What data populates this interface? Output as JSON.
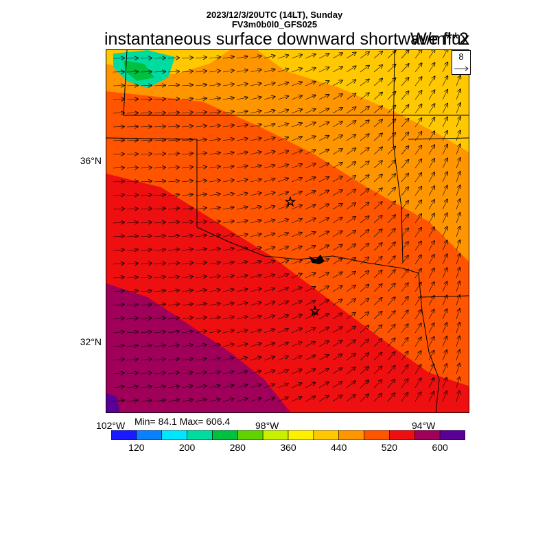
{
  "header": {
    "line1": "2023/12/3/20UTC (14LT), Sunday",
    "line2": "FV3m0b0l0_GFS025",
    "title": "instantaneous surface downward shortwave flux",
    "units": "W/m**2"
  },
  "map": {
    "lat_labels": [
      "36°N",
      "32°N"
    ],
    "lon_labels": [
      "102°W",
      "98°W",
      "94°W"
    ],
    "stats": "Min= 84.1 Max= 606.4",
    "vector_ref": "8",
    "markers": [
      "star-marker",
      "star-marker"
    ]
  },
  "colorbar": {
    "colors": [
      "#1a1aff",
      "#0a80ff",
      "#00e6ff",
      "#00dca0",
      "#00c040",
      "#60d200",
      "#c8f000",
      "#fff000",
      "#ffc800",
      "#ff9600",
      "#ff5500",
      "#ee1010",
      "#a0005a",
      "#5a0096"
    ],
    "tick_labels": [
      "120",
      "200",
      "280",
      "360",
      "440",
      "520",
      "600"
    ]
  },
  "chart_data": {
    "type": "heatmap",
    "title": "instantaneous surface downward shortwave flux",
    "units": "W/m**2",
    "levels": [
      80,
      120,
      160,
      200,
      240,
      280,
      320,
      360,
      400,
      440,
      480,
      520,
      560,
      600,
      640
    ],
    "value_min": 84.1,
    "value_max": 606.4,
    "lat_range": [
      29.5,
      37.5
    ],
    "lon_range": [
      -102,
      -94
    ],
    "gradient_note": "values increase from northeast (~420) to southwest (~600)"
  }
}
